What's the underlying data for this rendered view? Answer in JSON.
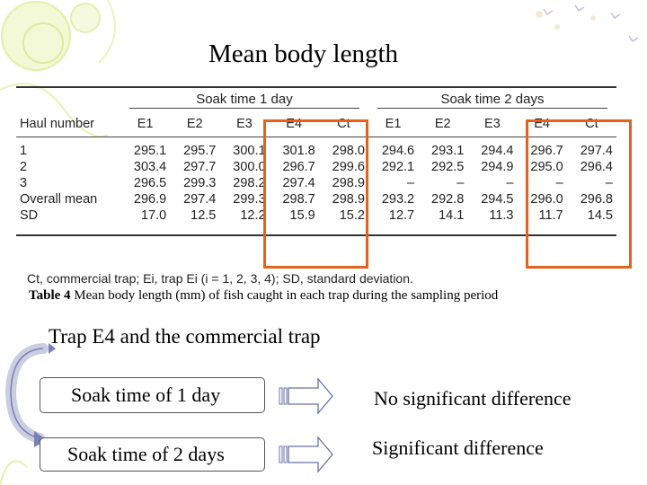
{
  "title": "Mean body length",
  "table": {
    "group_headers": [
      "Soak time 1 day",
      "Soak time 2 days"
    ],
    "row_header_label": "Haul number",
    "columns": [
      "E1",
      "E2",
      "E3",
      "E4",
      "Ct",
      "E1",
      "E2",
      "E3",
      "E4",
      "Ct"
    ],
    "rows": [
      {
        "label": "1",
        "values": [
          "295.1",
          "295.7",
          "300.1",
          "301.8",
          "298.0",
          "294.6",
          "293.1",
          "294.4",
          "296.7",
          "297.4"
        ]
      },
      {
        "label": "2",
        "values": [
          "303.4",
          "297.7",
          "300.0",
          "296.7",
          "299.6",
          "292.1",
          "292.5",
          "294.9",
          "295.0",
          "296.4"
        ]
      },
      {
        "label": "3",
        "values": [
          "296.5",
          "299.3",
          "298.2",
          "297.4",
          "298.9",
          "–",
          "–",
          "–",
          "–",
          "–"
        ]
      },
      {
        "label": "Overall mean",
        "values": [
          "296.9",
          "297.4",
          "299.3",
          "298.7",
          "298.9",
          "293.2",
          "292.8",
          "294.5",
          "296.0",
          "296.8"
        ]
      },
      {
        "label": "SD",
        "values": [
          "17.0",
          "12.5",
          "12.2",
          "15.9",
          "15.2",
          "12.7",
          "14.1",
          "11.3",
          "11.7",
          "14.5"
        ]
      }
    ],
    "footnote": "Ct, commercial trap; Ei, trap Ei (i = 1, 2, 3, 4); SD, standard deviation."
  },
  "caption": {
    "label": "Table 4",
    "text": "Mean body length (mm) of fish caught in each trap during the sampling period"
  },
  "subtitle": "Trap E4 and the commercial trap",
  "comparisons": [
    {
      "condition": "Soak time of 1 day",
      "result": "No significant difference"
    },
    {
      "condition": "Soak time of 2 days",
      "result": "Significant difference"
    }
  ],
  "colors": {
    "highlight": "#e8601c",
    "decoration": "#dfee9a"
  }
}
